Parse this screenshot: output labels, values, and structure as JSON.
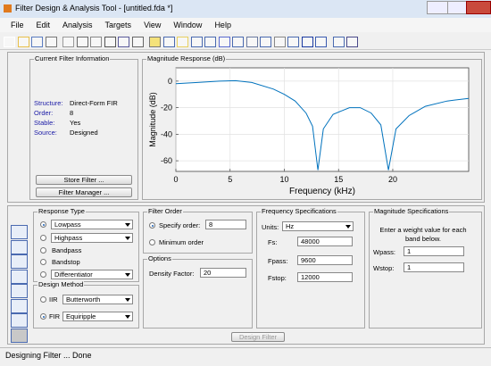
{
  "window": {
    "title": "Filter Design & Analysis Tool - [untitled.fda *]"
  },
  "menu": [
    "File",
    "Edit",
    "Analysis",
    "Targets",
    "View",
    "Window",
    "Help"
  ],
  "current_filter": {
    "title": "Current Filter Information",
    "fields": [
      [
        "Structure:",
        "Direct-Form FIR"
      ],
      [
        "Order:",
        "8"
      ],
      [
        "Stable:",
        "Yes"
      ],
      [
        "Source:",
        "Designed"
      ]
    ],
    "buttons": [
      "Store Filter ...",
      "Filter Manager ..."
    ]
  },
  "plot": {
    "title": "Magnitude Response (dB)",
    "x_label": "Frequency (kHz)",
    "y_label": "Magnitude (dB)",
    "x": [
      0,
      2,
      4,
      5.5,
      7,
      9,
      10,
      11,
      12,
      12.6,
      13.1,
      13.6,
      14.5,
      16,
      17,
      18,
      18.9,
      19.6,
      20.3,
      21.5,
      23,
      25,
      27
    ],
    "values": [
      -2,
      -1,
      0,
      0.3,
      -1,
      -6,
      -10,
      -15,
      -24,
      -34,
      -67,
      -36,
      -25,
      -20,
      -20,
      -24,
      -33,
      -67,
      -36,
      -26,
      -19,
      -15,
      -13
    ],
    "xlim": [
      0,
      27
    ],
    "ylim": [
      -68,
      10
    ],
    "xticks": [
      0,
      5,
      10,
      15,
      20
    ],
    "yticks": [
      0,
      -20,
      -40,
      -60
    ],
    "color": "#0072bd",
    "grid": true
  },
  "response_type": {
    "title": "Response Type",
    "options": [
      "Lowpass",
      "Highpass",
      "Bandpass",
      "Bandstop",
      "Differentiator"
    ]
  },
  "design_method": {
    "title": "Design Method",
    "options": [
      {
        "label": "IIR",
        "choice": "Butterworth"
      },
      {
        "label": "FIR",
        "choice": "Equiripple"
      }
    ]
  },
  "filter_order": {
    "title": "Filter Order",
    "specify": "Specify order:",
    "order": "8",
    "minimum": "Minimum order"
  },
  "options": {
    "title": "Options",
    "density_label": "Density Factor:",
    "density": "20"
  },
  "freq_specs": {
    "title": "Frequency Specifications",
    "units_label": "Units:",
    "units": "Hz",
    "fields": [
      [
        "Fs:",
        "48000"
      ],
      [
        "Fpass:",
        "9600"
      ],
      [
        "Fstop:",
        "12000"
      ]
    ]
  },
  "mag_specs": {
    "title": "Magnitude Specifications",
    "note": "Enter a weight value for each band below.",
    "fields": [
      [
        "Wpass:",
        "1"
      ],
      [
        "Wstop:",
        "1"
      ]
    ]
  },
  "design_button": "Design Filter",
  "status": "Designing Filter ... Done"
}
